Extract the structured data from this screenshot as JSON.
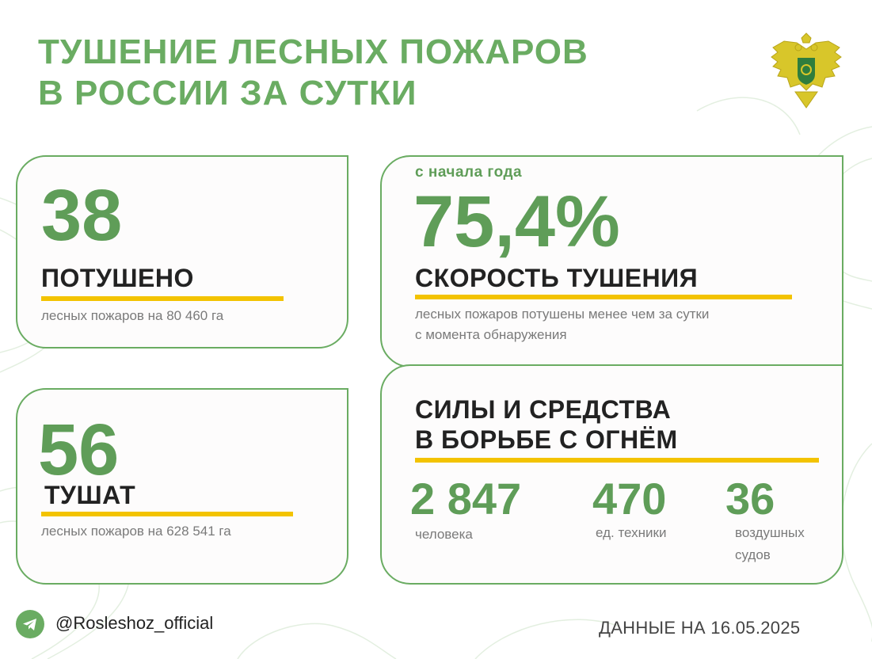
{
  "header": {
    "title_line1": "ТУШЕНИЕ ЛЕСНЫХ ПОЖАРОВ",
    "title_line2": "В РОССИИ ЗА СУТКИ"
  },
  "extinguished": {
    "number": "38",
    "label": "ПОТУШЕНО",
    "description": "лесных пожаров на 80 460 га"
  },
  "being_extinguished": {
    "number": "56",
    "label": "ТУШАТ",
    "description": "лесных пожаров на 628 541 га"
  },
  "speed": {
    "caption": "с начала года",
    "number": "75,4%",
    "label": "СКОРОСТЬ ТУШЕНИЯ",
    "description_line1": "лесных пожаров потушены менее чем за сутки",
    "description_line2": "с момента обнаружения"
  },
  "forces": {
    "title_line1": "СИЛЫ И СРЕДСТВА",
    "title_line2": "В БОРЬБЕ С ОГНЁМ",
    "people_number": "2 847",
    "people_label": "человека",
    "equipment_number": "470",
    "equipment_label": "ед. техники",
    "aircraft_number": "36",
    "aircraft_label_line1": "воздушных",
    "aircraft_label_line2": "судов"
  },
  "footer": {
    "handle": "@Rosleshoz_official",
    "date": "ДАННЫЕ НА 16.05.2025"
  },
  "colors": {
    "accent_green": "#6aac62",
    "number_green": "#5f9d58",
    "underline_yellow": "#f3c300",
    "emblem_gold": "#d8c62a"
  },
  "icons": [
    "telegram-icon",
    "coat-of-arms-emblem"
  ]
}
